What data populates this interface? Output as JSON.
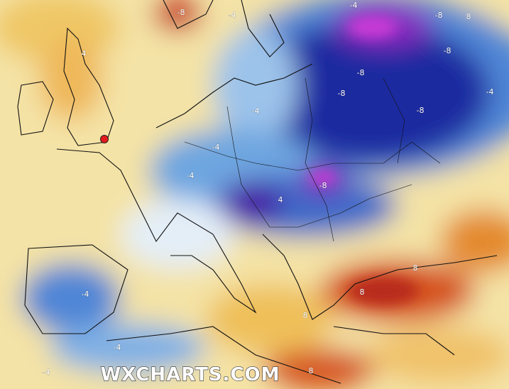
{
  "watermark": "WXCHARTS.COM",
  "contour_labels": [
    "-8",
    "-4",
    "-4",
    "-8",
    "8",
    "-8",
    "-8",
    "-8",
    "-8",
    "-4",
    "-4",
    "-4",
    "-4",
    "-8",
    "4",
    "-4",
    "-4",
    "8",
    "8",
    "8",
    "8",
    "-4",
    "4"
  ]
}
